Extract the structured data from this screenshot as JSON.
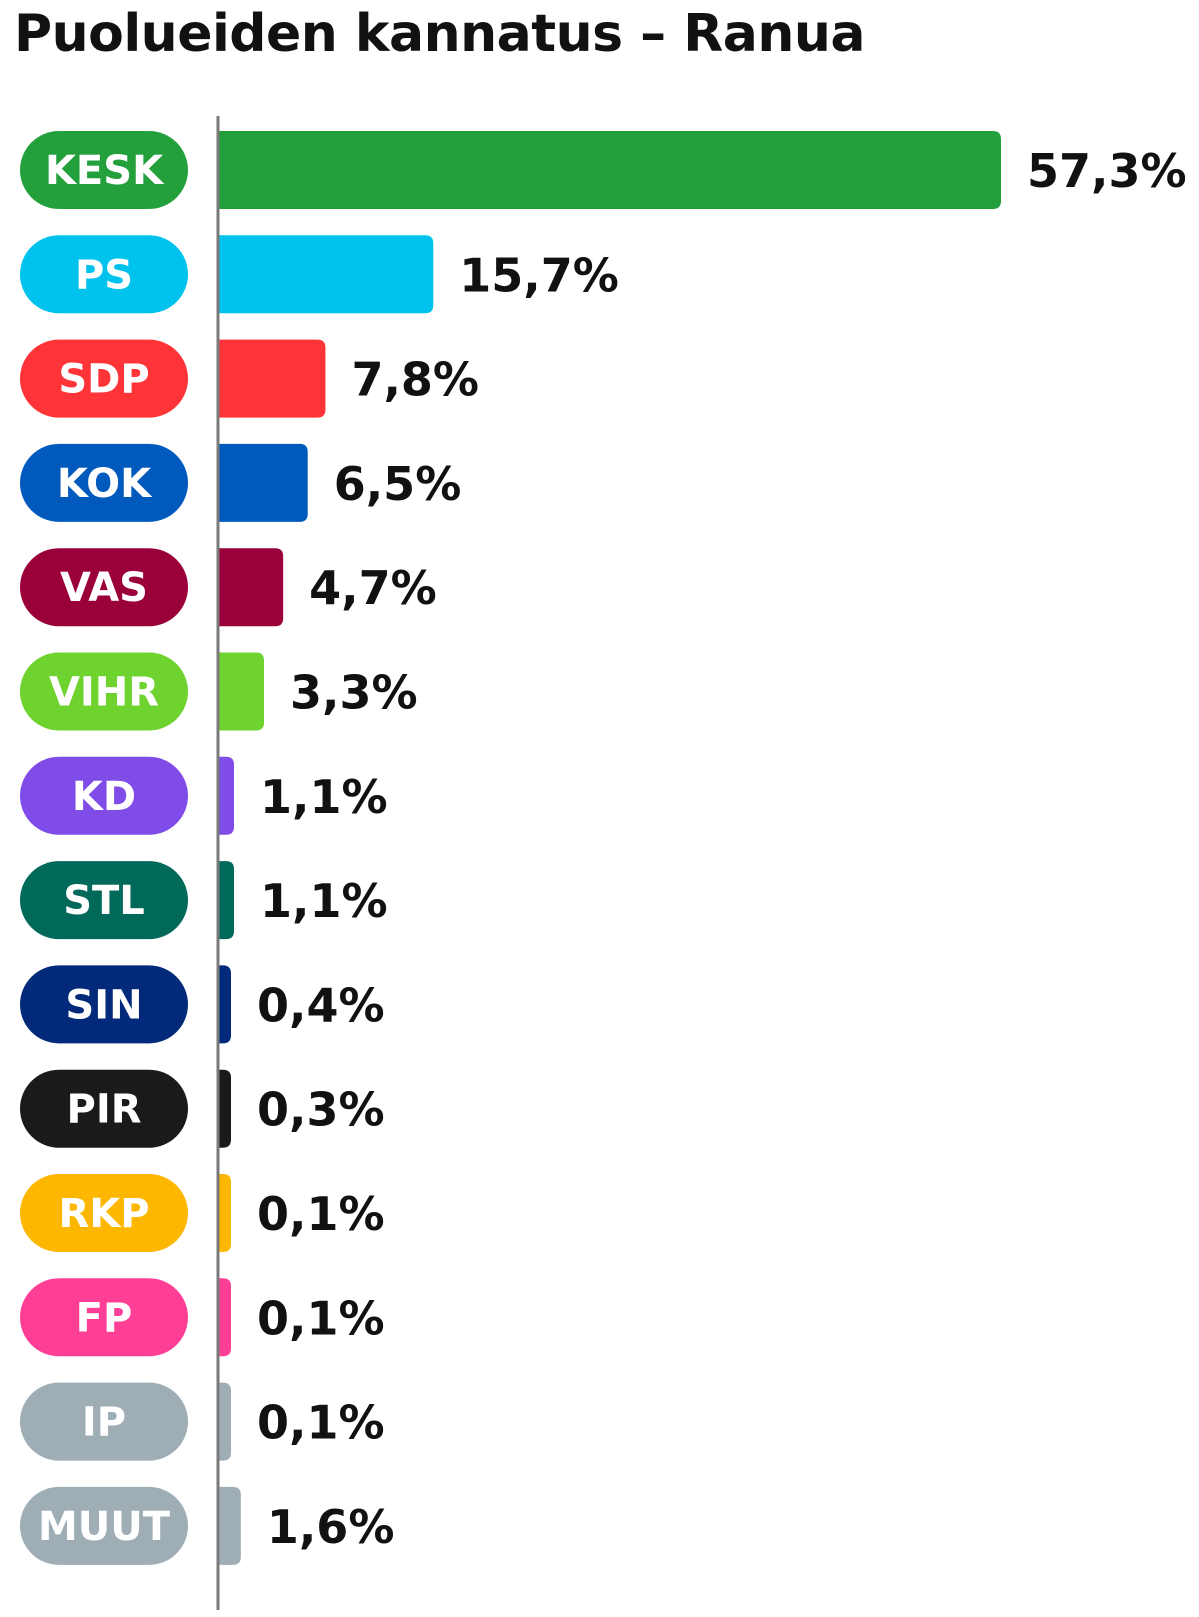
{
  "chart_data": {
    "type": "bar",
    "orientation": "horizontal",
    "title": "Puolueiden kannatus – Ranua",
    "unit": "%",
    "categories": [
      "KESK",
      "PS",
      "SDP",
      "KOK",
      "VAS",
      "VIHR",
      "KD",
      "STL",
      "SIN",
      "PIR",
      "RKP",
      "FP",
      "IP",
      "MUUT"
    ],
    "values": [
      57.3,
      15.7,
      7.8,
      6.5,
      4.7,
      3.3,
      1.1,
      1.1,
      0.4,
      0.3,
      0.1,
      0.1,
      0.1,
      1.6
    ],
    "value_labels": [
      "57,3%",
      "15,7%",
      "7,8%",
      "6,5%",
      "4,7%",
      "3,3%",
      "1,1%",
      "1,1%",
      "0,4%",
      "0,3%",
      "0,1%",
      "0,1%",
      "0,1%",
      "1,6%"
    ],
    "colors": [
      "#23a03b",
      "#00c3ed",
      "#ff3439",
      "#005abe",
      "#9a0039",
      "#6fd32f",
      "#7f4ce8",
      "#00695a",
      "#03297a",
      "#1a1a1a",
      "#fdb700",
      "#ff3e96",
      "#9fadb5",
      "#9fadb5"
    ],
    "xlim": [
      0,
      57.3
    ],
    "grid": false,
    "legend": "none"
  }
}
